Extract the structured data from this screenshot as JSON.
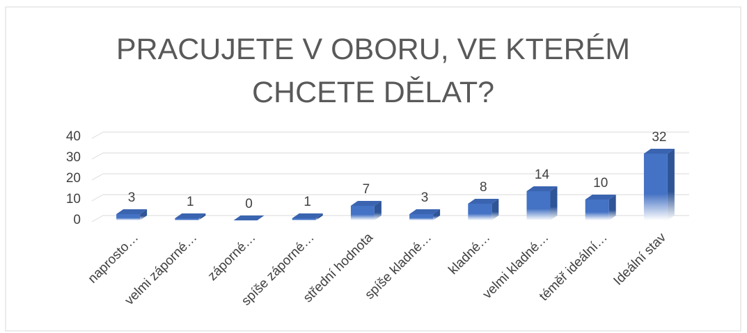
{
  "chart_data": {
    "type": "bar3d",
    "title": "PRACUJETE V OBORU, VE KTERÉM CHCETE DĚLAT?",
    "categories": [
      "naprosto…",
      "velmi záporné…",
      "záporné…",
      "spíše záporné…",
      "střední hodnota",
      "spíše kladné…",
      "kladné…",
      "velmi kladné…",
      "téměř ideální…",
      "Ideální stav"
    ],
    "values": [
      3,
      1,
      0,
      1,
      7,
      3,
      8,
      14,
      10,
      32
    ],
    "color": "#4472c4",
    "ylim": [
      0,
      40
    ],
    "yticks": [
      0,
      10,
      20,
      30,
      40
    ],
    "grid": true
  }
}
